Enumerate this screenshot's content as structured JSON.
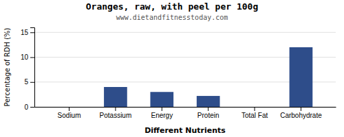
{
  "chart_data": {
    "type": "bar",
    "title": "Oranges, raw, with peel per 100g",
    "subtitle": "www.dietandfitnesstoday.com",
    "xlabel": "Different Nutrients",
    "ylabel": "Percentage of RDH (%)",
    "categories": [
      "Sodium",
      "Potassium",
      "Energy",
      "Protein",
      "Total Fat",
      "Carbohydrate"
    ],
    "values": [
      0,
      4,
      3,
      2.2,
      0,
      12
    ],
    "colors": [
      "#ff8c00",
      "#2e4d8a",
      "#2e4d8a",
      "#2e4d8a",
      "#2e4d8a",
      "#2e4d8a"
    ],
    "ylim": [
      0,
      16
    ],
    "yticks": [
      0,
      5,
      10,
      15
    ],
    "grid": true
  }
}
